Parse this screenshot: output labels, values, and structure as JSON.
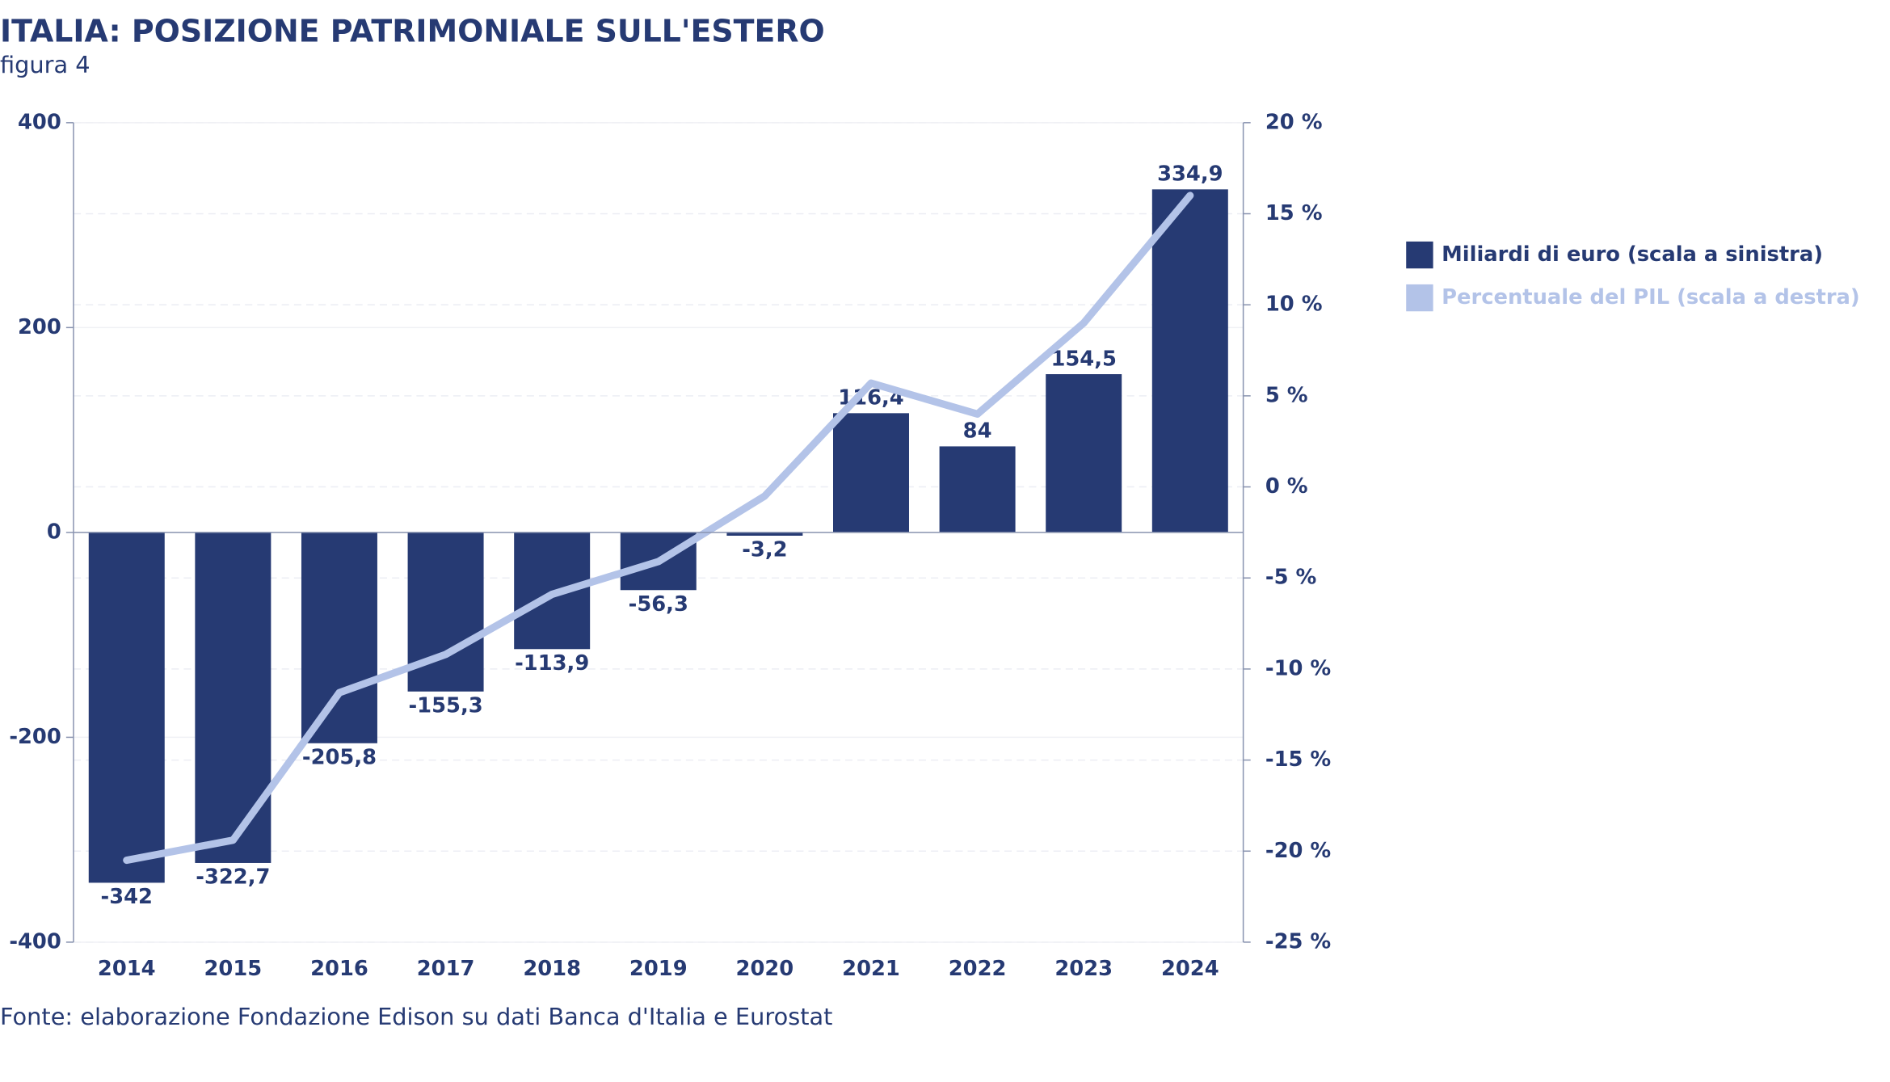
{
  "chart_data": {
    "type": "bar",
    "title": "ITALIA: POSIZIONE PATRIMONIALE SULL'ESTERO",
    "subtitle": "figura 4",
    "source": "Fonte: elaborazione Fondazione Edison su dati Banca d'Italia e Eurostat",
    "categories": [
      "2014",
      "2015",
      "2016",
      "2017",
      "2018",
      "2019",
      "2020",
      "2021",
      "2022",
      "2023",
      "2024"
    ],
    "series": [
      {
        "name": "Miliardi di euro (scala a sinistra)",
        "type": "bar",
        "color": "#263a73",
        "values": [
          -342,
          -322.7,
          -205.8,
          -155.3,
          -113.9,
          -56.3,
          -3.2,
          116.4,
          84,
          154.5,
          334.9
        ],
        "value_labels": [
          "-342",
          "-322,7",
          "-205,8",
          "-155,3",
          "-113,9",
          "-56,3",
          "-3,2",
          "116,4",
          "84",
          "154,5",
          "334,9"
        ]
      },
      {
        "name": "Percentuale del PIL (scala a destra)",
        "type": "line",
        "axis": "y2",
        "color": "#b3c3e8",
        "values": [
          -20.5,
          -19.4,
          -11.3,
          -9.2,
          -5.9,
          -4.1,
          -0.5,
          5.7,
          4.0,
          9.0,
          16.0
        ]
      }
    ],
    "ylim": [
      -400,
      400
    ],
    "yticks": [
      -400,
      -200,
      0,
      200,
      400
    ],
    "y2lim": [
      -25,
      20
    ],
    "y2ticks": [
      {
        "value": -25,
        "label": "-25 %"
      },
      {
        "value": -20,
        "label": "-20 %"
      },
      {
        "value": -15,
        "label": "-15 %"
      },
      {
        "value": -10,
        "label": "-10 %"
      },
      {
        "value": -5,
        "label": "-5 %"
      },
      {
        "value": 0,
        "label": "0 %"
      },
      {
        "value": 5,
        "label": "5 %"
      },
      {
        "value": 10,
        "label": "10 %"
      },
      {
        "value": 15,
        "label": "15 %"
      },
      {
        "value": 20,
        "label": "20 %"
      }
    ],
    "grid": true,
    "legend": "right"
  }
}
